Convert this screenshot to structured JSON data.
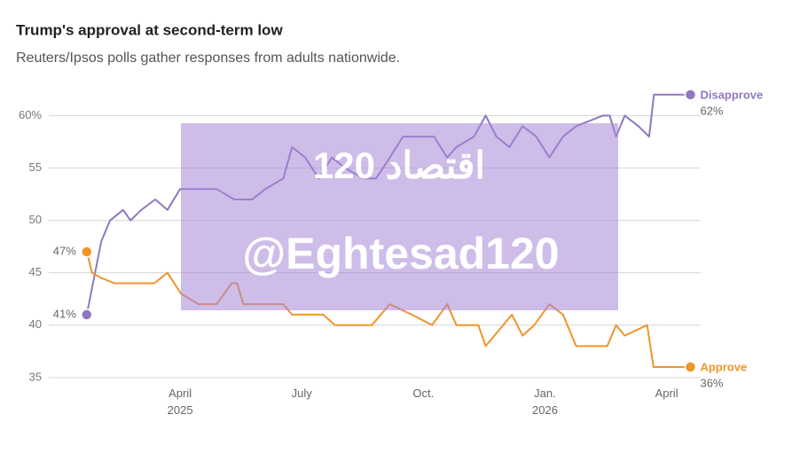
{
  "chart_data": {
    "type": "line",
    "title": "Trump's approval at second-term low",
    "subtitle": "Reuters/Ipsos polls gather responses from adults nationwide.",
    "watermark": [
      "اقتصاد 120",
      "@Eghtesad120"
    ],
    "xlim": [
      2024.98,
      2026.32
    ],
    "xticks": [
      {
        "value": 2025.25,
        "label": "April\n2025"
      },
      {
        "value": 2025.5,
        "label": "July"
      },
      {
        "value": 2025.75,
        "label": "Oct."
      },
      {
        "value": 2026.0,
        "label": "Jan.\n2026"
      },
      {
        "value": 2026.25,
        "label": "April"
      }
    ],
    "ylim": [
      33.8,
      63
    ],
    "yticks": [
      35,
      40,
      45,
      50,
      55,
      {
        "value": 60,
        "label": "60%"
      }
    ],
    "grid": true,
    "series": [
      {
        "name": "Disapprove",
        "color": "#8f78c0",
        "x": [
          2025.058,
          2025.088,
          2025.106,
          2025.133,
          2025.148,
          2025.17,
          2025.199,
          2025.224,
          2025.25,
          2025.325,
          2025.361,
          2025.398,
          2025.425,
          2025.462,
          2025.48,
          2025.507,
          2025.535,
          2025.562,
          2025.589,
          2025.626,
          2025.653,
          2025.681,
          2025.708,
          2025.772,
          2025.799,
          2025.818,
          2025.854,
          2025.878,
          2025.9,
          2025.927,
          2025.954,
          2025.982,
          2026.009,
          2026.037,
          2026.064,
          2026.119,
          2026.133,
          2026.146,
          2026.164,
          2026.192,
          2026.214,
          2026.224,
          2026.299
        ],
        "values": [
          41,
          48,
          50,
          51,
          50,
          51,
          52,
          51,
          53,
          53,
          52,
          52,
          53,
          54,
          57,
          56,
          54,
          56,
          55,
          54,
          54,
          56,
          58,
          58,
          56,
          57,
          58,
          60,
          58,
          57,
          59,
          58,
          56,
          58,
          59,
          60,
          60,
          58,
          60,
          59,
          58,
          62,
          62
        ],
        "value_labels": [
          "41%",
          null,
          null,
          null,
          null,
          null,
          null,
          null,
          null,
          null,
          null,
          null,
          null,
          null,
          null,
          null,
          null,
          null,
          null,
          null,
          null,
          null,
          null,
          null,
          null,
          null,
          null,
          null,
          null,
          null,
          null,
          null,
          null,
          null,
          null,
          null,
          null,
          null,
          null,
          null,
          null,
          null,
          "62%"
        ]
      },
      {
        "name": "Approve",
        "color": "#f0952a",
        "x": [
          2025.058,
          2025.069,
          2025.088,
          2025.115,
          2025.197,
          2025.224,
          2025.252,
          2025.288,
          2025.325,
          2025.356,
          2025.367,
          2025.38,
          2025.462,
          2025.48,
          2025.544,
          2025.568,
          2025.644,
          2025.681,
          2025.726,
          2025.768,
          2025.799,
          2025.818,
          2025.863,
          2025.878,
          2025.896,
          2025.932,
          2025.954,
          2025.978,
          2026.009,
          2026.037,
          2026.064,
          2026.128,
          2026.146,
          2026.164,
          2026.21,
          2026.223,
          2026.299
        ],
        "values": [
          47,
          45,
          44.5,
          44,
          44,
          45,
          43,
          42,
          42,
          44,
          44,
          42,
          42,
          41,
          41,
          40,
          40,
          42,
          41,
          40,
          42,
          40,
          40,
          38,
          39,
          41,
          39,
          40,
          42,
          41,
          38,
          38,
          40,
          39,
          40,
          36,
          36
        ],
        "value_labels": [
          "47%",
          null,
          null,
          null,
          null,
          null,
          null,
          null,
          null,
          null,
          null,
          null,
          null,
          null,
          null,
          null,
          null,
          null,
          null,
          null,
          null,
          null,
          null,
          null,
          null,
          null,
          null,
          null,
          null,
          null,
          null,
          null,
          null,
          null,
          null,
          null,
          "36%"
        ]
      }
    ]
  }
}
